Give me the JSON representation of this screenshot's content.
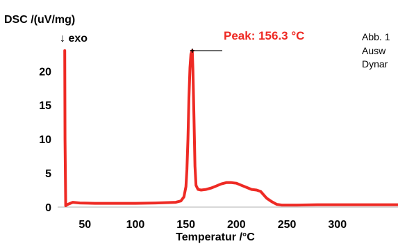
{
  "chart_data": {
    "type": "line",
    "ylabel": "DSC /(uV/mg)",
    "exo_label": "↓  exo",
    "xlabel": "Temperatur /°C",
    "xlim": [
      23,
      360
    ],
    "ylim": [
      0,
      23.5
    ],
    "x_ticks": [
      "50",
      "100",
      "150",
      "200",
      "250",
      "300"
    ],
    "y_ticks": [
      "0",
      "5",
      "10",
      "15",
      "20"
    ],
    "peak": {
      "label": "Peak: 156.3 °C",
      "x": 156.3,
      "y": 23.0
    },
    "side_text": [
      "Abb. 1",
      "Ausw",
      "Dynar"
    ],
    "line_color": "#ee2a24",
    "series": [
      {
        "x": [
          30,
          30.3,
          31,
          33,
          38,
          45,
          60,
          80,
          100,
          120,
          140,
          145,
          148,
          150,
          151,
          152,
          153,
          154,
          155,
          156.3,
          157,
          158,
          159,
          160,
          162,
          165,
          170,
          175,
          180,
          185,
          190,
          195,
          200,
          205,
          210,
          215,
          220,
          224,
          227,
          230,
          235,
          240,
          245,
          250,
          260,
          280,
          300,
          320,
          340,
          360
        ],
        "y": [
          23.0,
          10.0,
          0.2,
          0.4,
          0.7,
          0.6,
          0.55,
          0.55,
          0.55,
          0.6,
          0.7,
          0.9,
          1.5,
          3.0,
          5.5,
          10.0,
          16.0,
          20.5,
          22.5,
          23.0,
          20.0,
          13.0,
          6.0,
          3.2,
          2.6,
          2.5,
          2.6,
          2.8,
          3.1,
          3.4,
          3.6,
          3.6,
          3.5,
          3.2,
          2.9,
          2.6,
          2.5,
          2.3,
          1.8,
          1.3,
          0.8,
          0.4,
          0.3,
          0.3,
          0.3,
          0.35,
          0.35,
          0.35,
          0.35,
          0.35
        ]
      }
    ]
  }
}
